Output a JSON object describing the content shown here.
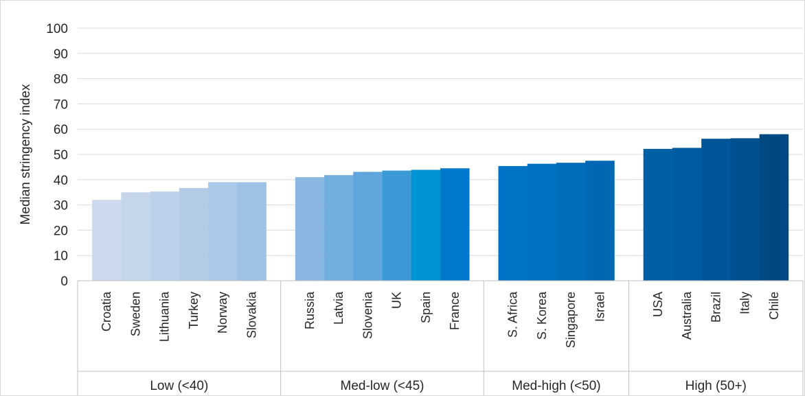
{
  "chart_data": {
    "type": "bar",
    "title": "",
    "ylabel": "Median stringency index",
    "ylim": [
      0,
      100
    ],
    "yticks": [
      0,
      10,
      20,
      30,
      40,
      50,
      60,
      70,
      80,
      90,
      100
    ],
    "grid": true,
    "legend": "none",
    "groups": [
      {
        "name": "Low (<40)",
        "bars": [
          {
            "category": "Croatia",
            "value": 32,
            "color": "#ccdaee"
          },
          {
            "category": "Sweden",
            "value": 35,
            "color": "#c5d6eb"
          },
          {
            "category": "Lithuania",
            "value": 35.3,
            "color": "#bed1ea"
          },
          {
            "category": "Turkey",
            "value": 36.7,
            "color": "#b5cce6"
          },
          {
            "category": "Norway",
            "value": 39,
            "color": "#aac8e7"
          },
          {
            "category": "Slovakia",
            "value": 39,
            "color": "#9dc2e6"
          }
        ]
      },
      {
        "name": "Med-low (<45)",
        "bars": [
          {
            "category": "Russia",
            "value": 41,
            "color": "#8ab7e1"
          },
          {
            "category": "Latvia",
            "value": 41.8,
            "color": "#74aede"
          },
          {
            "category": "Slovenia",
            "value": 43.1,
            "color": "#5ea6dc"
          },
          {
            "category": "UK",
            "value": 43.6,
            "color": "#3b9ad6"
          },
          {
            "category": "Spain",
            "value": 43.9,
            "color": "#0094d5"
          },
          {
            "category": "France",
            "value": 44.5,
            "color": "#0079cc"
          }
        ]
      },
      {
        "name": "Med-high (<50)",
        "bars": [
          {
            "category": "S. Africa",
            "value": 45.4,
            "color": "#0074c4"
          },
          {
            "category": "S. Korea",
            "value": 46.3,
            "color": "#0070c0"
          },
          {
            "category": "Singapore",
            "value": 46.7,
            "color": "#006dba"
          },
          {
            "category": "Israel",
            "value": 47.5,
            "color": "#0068b3"
          }
        ]
      },
      {
        "name": "High (50+)",
        "bars": [
          {
            "category": "USA",
            "value": 52.2,
            "color": "#0060a6"
          },
          {
            "category": "Australia",
            "value": 52.6,
            "color": "#005ba0"
          },
          {
            "category": "Brazil",
            "value": 56.2,
            "color": "#005598"
          },
          {
            "category": "Italy",
            "value": 56.4,
            "color": "#004f8f"
          },
          {
            "category": "Chile",
            "value": 58,
            "color": "#004882"
          }
        ]
      }
    ]
  }
}
